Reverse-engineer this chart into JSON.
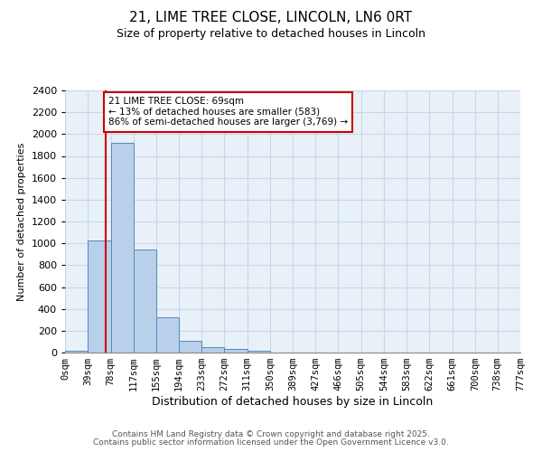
{
  "title": "21, LIME TREE CLOSE, LINCOLN, LN6 0RT",
  "subtitle": "Size of property relative to detached houses in Lincoln",
  "xlabel": "Distribution of detached houses by size in Lincoln",
  "ylabel": "Number of detached properties",
  "bin_labels": [
    "0sqm",
    "39sqm",
    "78sqm",
    "117sqm",
    "155sqm",
    "194sqm",
    "233sqm",
    "272sqm",
    "311sqm",
    "350sqm",
    "389sqm",
    "427sqm",
    "466sqm",
    "505sqm",
    "544sqm",
    "583sqm",
    "622sqm",
    "661sqm",
    "700sqm",
    "738sqm",
    "777sqm"
  ],
  "bin_edges": [
    0,
    39,
    78,
    117,
    155,
    194,
    233,
    272,
    311,
    350,
    389,
    427,
    466,
    505,
    544,
    583,
    622,
    661,
    700,
    738,
    777
  ],
  "bar_heights": [
    20,
    1030,
    1920,
    940,
    320,
    105,
    50,
    30,
    20,
    0,
    0,
    0,
    0,
    0,
    0,
    0,
    0,
    0,
    0,
    0
  ],
  "bar_color": "#b8d0ea",
  "bar_edge_color": "#5588bb",
  "grid_color": "#c8d8e8",
  "bg_color": "#e8f0f8",
  "property_line_x": 69,
  "property_line_color": "#cc0000",
  "annotation_text": "21 LIME TREE CLOSE: 69sqm\n← 13% of detached houses are smaller (583)\n86% of semi-detached houses are larger (3,769) →",
  "annotation_box_color": "#cc0000",
  "ylim": [
    0,
    2400
  ],
  "yticks": [
    0,
    200,
    400,
    600,
    800,
    1000,
    1200,
    1400,
    1600,
    1800,
    2000,
    2200,
    2400
  ],
  "footer_line1": "Contains HM Land Registry data © Crown copyright and database right 2025.",
  "footer_line2": "Contains public sector information licensed under the Open Government Licence v3.0."
}
